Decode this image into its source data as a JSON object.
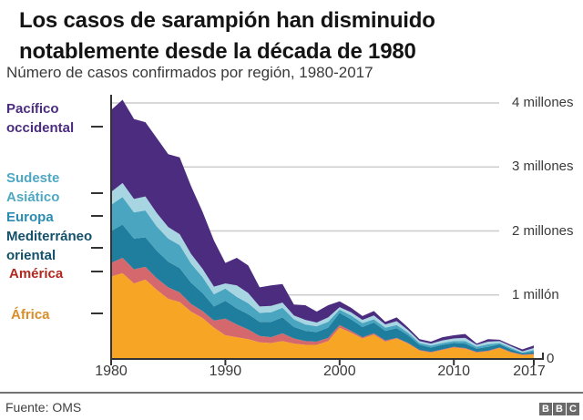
{
  "header": {
    "title_line1": "Los casos de sarampión han disminuido",
    "title_line2": "notablemente desde la década de 1980",
    "subtitle": "Número de casos confirmados por región, 1980-2017"
  },
  "chart_data": {
    "type": "area",
    "stacked": true,
    "title": "Los casos de sarampión han disminuido notablemente desde la década de 1980",
    "subtitle": "Número de casos confirmados por región, 1980-2017",
    "values_unit": "millions of confirmed measles cases per year",
    "grid": "horizontal",
    "legend_position": "left",
    "axis_color": "#333333",
    "grid_color": "#cccccc",
    "x": [
      1980,
      1981,
      1982,
      1983,
      1984,
      1985,
      1986,
      1987,
      1988,
      1989,
      1990,
      1991,
      1992,
      1993,
      1994,
      1995,
      1996,
      1997,
      1998,
      1999,
      2000,
      2001,
      2002,
      2003,
      2004,
      2005,
      2006,
      2007,
      2008,
      2009,
      2010,
      2011,
      2012,
      2013,
      2014,
      2015,
      2016,
      2017
    ],
    "x_ticks": [
      1980,
      1990,
      2000,
      2010,
      2017
    ],
    "y_ticks": [
      {
        "value_millions": 4,
        "label": "4 millones"
      },
      {
        "value_millions": 3,
        "label": "3 millones"
      },
      {
        "value_millions": 2,
        "label": "2 millones"
      },
      {
        "value_millions": 1,
        "label": "1 millón"
      },
      {
        "value_millions": 0,
        "label": "0"
      }
    ],
    "ylim_millions": [
      0,
      4.2
    ],
    "series": [
      {
        "name": "África",
        "color": "#f7a525",
        "values": [
          1.29,
          1.34,
          1.18,
          1.24,
          1.08,
          0.94,
          0.89,
          0.74,
          0.64,
          0.49,
          0.37,
          0.34,
          0.31,
          0.26,
          0.25,
          0.28,
          0.24,
          0.22,
          0.22,
          0.28,
          0.49,
          0.41,
          0.32,
          0.38,
          0.27,
          0.32,
          0.24,
          0.13,
          0.1,
          0.14,
          0.18,
          0.16,
          0.1,
          0.12,
          0.17,
          0.1,
          0.06,
          0.07
        ]
      },
      {
        "name": "América",
        "color": "#d4686c",
        "values": [
          0.21,
          0.24,
          0.22,
          0.2,
          0.18,
          0.18,
          0.15,
          0.12,
          0.11,
          0.11,
          0.26,
          0.2,
          0.15,
          0.1,
          0.09,
          0.12,
          0.08,
          0.06,
          0.05,
          0.05,
          0.04,
          0.03,
          0.02,
          0.02,
          0.02,
          0.01,
          0.01,
          0.01,
          0.01,
          0.01,
          0.01,
          0.01,
          0.01,
          0.01,
          0.01,
          0.01,
          0.01,
          0.01
        ]
      },
      {
        "name": "Mediterráneo oriental",
        "color": "#1f7e9e",
        "values": [
          0.5,
          0.52,
          0.48,
          0.46,
          0.43,
          0.4,
          0.38,
          0.33,
          0.28,
          0.22,
          0.28,
          0.25,
          0.24,
          0.22,
          0.24,
          0.25,
          0.18,
          0.16,
          0.15,
          0.16,
          0.19,
          0.18,
          0.16,
          0.17,
          0.15,
          0.15,
          0.12,
          0.08,
          0.07,
          0.07,
          0.06,
          0.07,
          0.05,
          0.06,
          0.05,
          0.04,
          0.02,
          0.03
        ]
      },
      {
        "name": "Europa",
        "color": "#4aa5c0",
        "values": [
          0.41,
          0.43,
          0.41,
          0.42,
          0.38,
          0.36,
          0.36,
          0.3,
          0.25,
          0.19,
          0.19,
          0.18,
          0.17,
          0.14,
          0.15,
          0.15,
          0.12,
          0.1,
          0.09,
          0.09,
          0.05,
          0.06,
          0.06,
          0.05,
          0.05,
          0.05,
          0.04,
          0.03,
          0.03,
          0.03,
          0.03,
          0.04,
          0.03,
          0.04,
          0.02,
          0.02,
          0.01,
          0.03
        ]
      },
      {
        "name": "Sudeste Asiático",
        "color": "#a8d5e2",
        "values": [
          0.2,
          0.22,
          0.21,
          0.22,
          0.21,
          0.18,
          0.17,
          0.15,
          0.13,
          0.12,
          0.08,
          0.18,
          0.16,
          0.1,
          0.1,
          0.08,
          0.06,
          0.07,
          0.06,
          0.07,
          0.04,
          0.05,
          0.05,
          0.06,
          0.05,
          0.06,
          0.04,
          0.03,
          0.03,
          0.04,
          0.04,
          0.05,
          0.03,
          0.04,
          0.03,
          0.03,
          0.02,
          0.03
        ]
      },
      {
        "name": "Pacífico occidental",
        "color": "#4b2c7f",
        "values": [
          1.28,
          1.3,
          1.25,
          1.16,
          1.17,
          1.14,
          1.2,
          1.06,
          0.89,
          0.72,
          0.32,
          0.43,
          0.43,
          0.3,
          0.32,
          0.29,
          0.17,
          0.23,
          0.17,
          0.19,
          0.09,
          0.07,
          0.06,
          0.07,
          0.04,
          0.06,
          0.04,
          0.03,
          0.03,
          0.05,
          0.05,
          0.06,
          0.02,
          0.04,
          0.02,
          0.02,
          0.03,
          0.04
        ]
      }
    ],
    "legend": {
      "items": [
        {
          "label": "Pacífico\noccidental",
          "color": "#4b2c7f"
        },
        {
          "label": "Sudeste\nAsiático",
          "color": "#4fa8c2"
        },
        {
          "label": "Europa",
          "color": "#2b8cb2"
        },
        {
          "label": "Mediterráneo\noriental",
          "color": "#15506b"
        },
        {
          "label": "América",
          "color": "#b0281e"
        },
        {
          "label": "África",
          "color": "#d88d2a"
        }
      ]
    }
  },
  "footer": {
    "source": "Fuente: OMS",
    "logo": {
      "letters": [
        "B",
        "B",
        "C"
      ]
    }
  }
}
